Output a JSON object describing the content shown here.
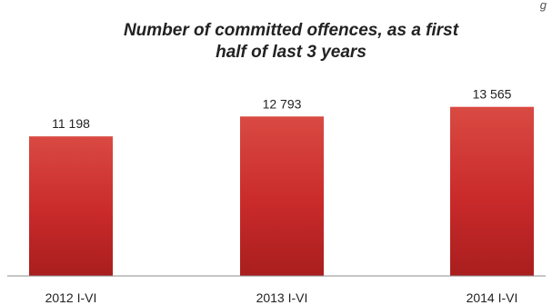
{
  "corner_text": "g",
  "chart_data": {
    "type": "bar",
    "title_lines": [
      "Number of committed offences, as a first",
      "half of last 3 years"
    ],
    "categories": [
      "2012 I-VI",
      "2013 I-VI",
      "2014  I-VI"
    ],
    "values": [
      11198,
      12793,
      13565
    ],
    "value_labels": [
      "11 198",
      "12 793",
      "13 565"
    ],
    "ylim": [
      0,
      15000
    ],
    "grid": false,
    "legend": "none",
    "bar_color": "#c92a2a",
    "bar_color_light": "#d94a43",
    "bar_color_dark": "#a91e1e"
  }
}
